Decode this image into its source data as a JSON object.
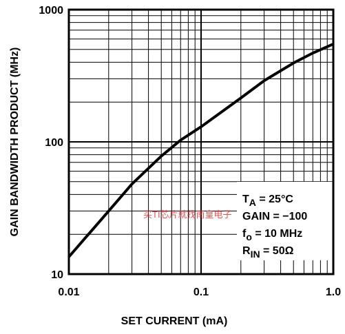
{
  "chart_data": {
    "type": "line",
    "x_label": "SET CURRENT (mA)",
    "y_label": "GAIN BANDWIDTH PRODUCT (MHz)",
    "x": [
      0.01,
      0.02,
      0.03,
      0.05,
      0.07,
      0.1,
      0.2,
      0.3,
      0.5,
      0.7,
      1.0
    ],
    "values": [
      13.5,
      30,
      48,
      78,
      103,
      130,
      215,
      290,
      395,
      470,
      550
    ],
    "color": "#000000",
    "xlim": [
      0.01,
      1.0
    ],
    "ylim": [
      10,
      1000
    ],
    "xticks": [
      0.01,
      0.1,
      {
        "value": 1,
        "label": "1.0"
      }
    ],
    "yticks": [
      10,
      100,
      1000
    ],
    "xscale": "log",
    "yscale": "log",
    "grid": true,
    "annotations": [
      [
        {
          "text": "T"
        },
        {
          "text": "A",
          "sub": true
        },
        {
          "text": " = 25°C"
        }
      ],
      [
        {
          "text": "GAIN = −100"
        }
      ],
      [
        {
          "text": "f"
        },
        {
          "text": "o",
          "sub": true
        },
        {
          "text": " = 10 MHz"
        }
      ],
      [
        {
          "text": "R"
        },
        {
          "text": "IN",
          "sub": true
        },
        {
          "text": " = 50Ω"
        }
      ]
    ],
    "watermark": "买TI芯片就找南皇电子"
  }
}
